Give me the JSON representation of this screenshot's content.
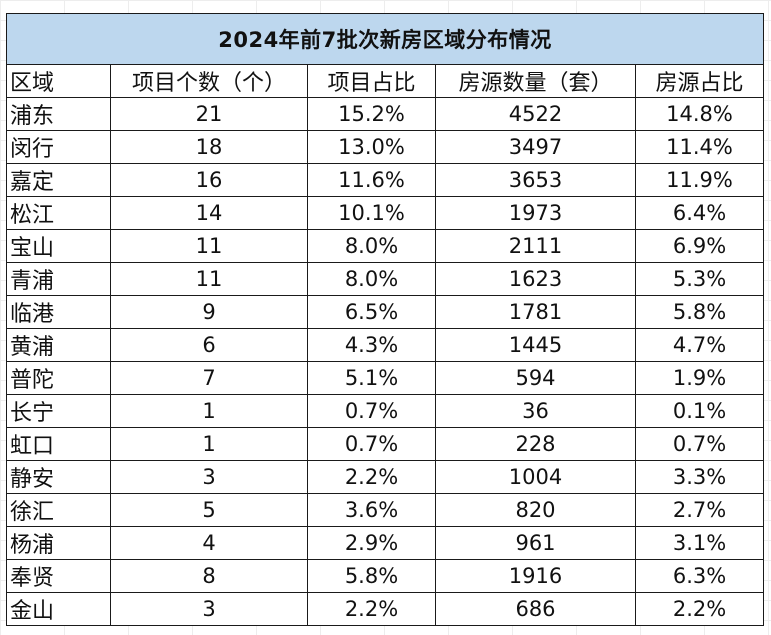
{
  "table": {
    "title": "2024年前7批次新房区域分布情况",
    "headers": [
      "区域",
      "项目个数（个）",
      "项目占比",
      "房源数量（套）",
      "房源占比"
    ],
    "rows": [
      [
        "浦东",
        "21",
        "15.2%",
        "4522",
        "14.8%"
      ],
      [
        "闵行",
        "18",
        "13.0%",
        "3497",
        "11.4%"
      ],
      [
        "嘉定",
        "16",
        "11.6%",
        "3653",
        "11.9%"
      ],
      [
        "松江",
        "14",
        "10.1%",
        "1973",
        "6.4%"
      ],
      [
        "宝山",
        "11",
        "8.0%",
        "2111",
        "6.9%"
      ],
      [
        "青浦",
        "11",
        "8.0%",
        "1623",
        "5.3%"
      ],
      [
        "临港",
        "9",
        "6.5%",
        "1781",
        "5.8%"
      ],
      [
        "黄浦",
        "6",
        "4.3%",
        "1445",
        "4.7%"
      ],
      [
        "普陀",
        "7",
        "5.1%",
        "594",
        "1.9%"
      ],
      [
        "长宁",
        "1",
        "0.7%",
        "36",
        "0.1%"
      ],
      [
        "虹口",
        "1",
        "0.7%",
        "228",
        "0.7%"
      ],
      [
        "静安",
        "3",
        "2.2%",
        "1004",
        "3.3%"
      ],
      [
        "徐汇",
        "5",
        "3.6%",
        "820",
        "2.7%"
      ],
      [
        "杨浦",
        "4",
        "2.9%",
        "961",
        "3.1%"
      ],
      [
        "奉贤",
        "8",
        "5.8%",
        "1916",
        "6.3%"
      ],
      [
        "金山",
        "3",
        "2.2%",
        "686",
        "2.2%"
      ]
    ]
  },
  "colors": {
    "title_background": "#bdd7ee",
    "border": "#1a1a1a",
    "text": "#111111"
  }
}
